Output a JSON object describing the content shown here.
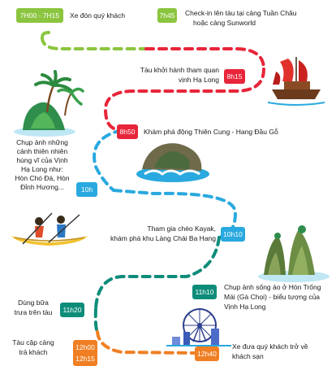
{
  "colors": {
    "lime": "#8bc53f",
    "red": "#e8253a",
    "blue": "#29a9df",
    "teal": "#0e8c7a",
    "orange": "#f07f23"
  },
  "timeline": [
    {
      "time": "7H00 - 7H15",
      "text": "Xe đón quý khách"
    },
    {
      "time": "7h45",
      "text": "Check-in lên tàu tại cảng Tuần Châu",
      "text2": "hoặc cảng Sunworld"
    },
    {
      "time": "8h15",
      "text": "Tàu khởi hành tham quan",
      "text2": "vịnh Hạ Long"
    },
    {
      "time": "8h50",
      "text": "Khám phá động Thiên Cung - Hang Đầu Gỗ"
    },
    {
      "time": "10h",
      "text": "Chụp ảnh những",
      "text2": "cảnh thiên nhiên",
      "text3": "hùng vĩ của Vịnh",
      "text4": "Hạ Long như:",
      "text5": "Hòn Chó Đá, Hòn",
      "text6": "Đỉnh Hương..."
    },
    {
      "time": "10h10",
      "text": "Tham gia chèo Kayak,",
      "text2": "khám phá khu Làng Chài Ba Hang"
    },
    {
      "time": "11h10",
      "text": "Chụp ảnh sống ảo ở Hòn Trống",
      "text2": "Mái (Gà Chọi) - biểu tượng của",
      "text3": "Vịnh Hạ Long"
    },
    {
      "time": "11h20",
      "text": "Dùng bữa",
      "text2": "trưa trên tàu"
    },
    {
      "time": "12h00",
      "time2": "12h15",
      "text": "Tàu cập cảng",
      "text2": "trả khách"
    },
    {
      "time": "12h40",
      "text": "Xe đưa quý khách trở về",
      "text2": "khách sạn"
    }
  ],
  "icons": {
    "junk_boat": "junk-boat-icon",
    "palm_island": "palm-island-icon",
    "cave_rock": "cave-rock-icon",
    "kayak": "kayak-icon",
    "rock_islet": "rock-islet-icon",
    "ferris_wheel": "ferris-wheel-icon"
  }
}
